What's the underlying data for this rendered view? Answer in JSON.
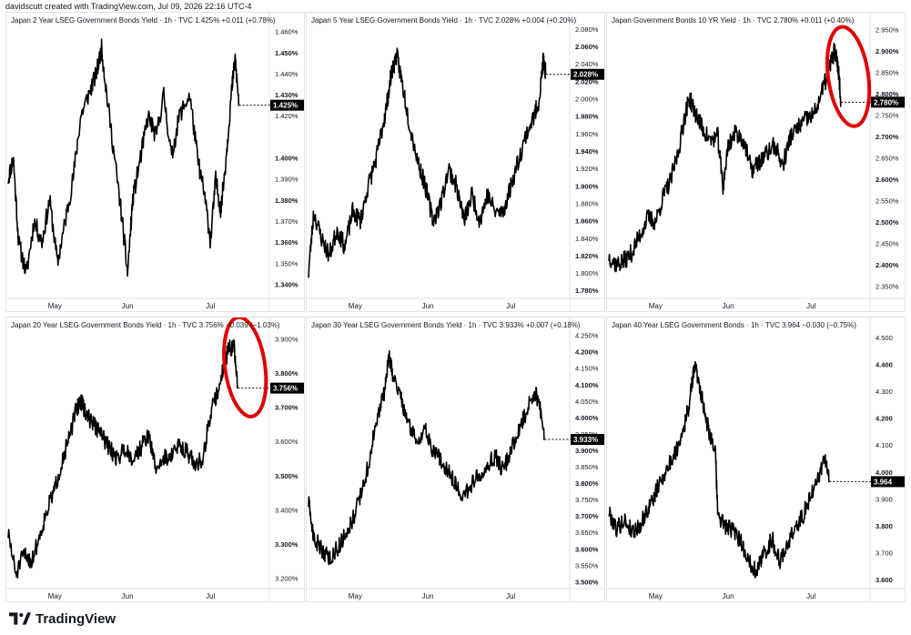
{
  "header": {
    "creator": "davidscutt created with TradingView.com, Jul 09, 2026 22:16 UTC-4"
  },
  "footer": {
    "brand": "TradingView"
  },
  "colors": {
    "line": "#000000",
    "circle": "#e00000",
    "price_label_bg": "#000000",
    "axis_text": "#131722"
  },
  "chart_data": [
    {
      "type": "line",
      "title": "Japan 2 Year LSEG Government Bonds Yield · 1h · TVC  1.425% +0.011 (+0.78%)",
      "x_ticks": [
        "May",
        "Jun",
        "Jul"
      ],
      "y_ticks": [
        "1.460%",
        "1.450%",
        "1.440%",
        "1.430%",
        "1.420%",
        "1.400%",
        "1.390%",
        "1.380%",
        "1.370%",
        "1.360%",
        "1.350%",
        "1.340%"
      ],
      "ylim": [
        1.335,
        1.462
      ],
      "last_value": 1.425,
      "last_label": "1.425%",
      "circled": false,
      "anchors": [
        [
          0,
          1.39
        ],
        [
          0.02,
          1.4
        ],
        [
          0.04,
          1.36
        ],
        [
          0.07,
          1.345
        ],
        [
          0.1,
          1.37
        ],
        [
          0.13,
          1.36
        ],
        [
          0.16,
          1.38
        ],
        [
          0.19,
          1.35
        ],
        [
          0.22,
          1.37
        ],
        [
          0.25,
          1.39
        ],
        [
          0.28,
          1.42
        ],
        [
          0.31,
          1.43
        ],
        [
          0.34,
          1.44
        ],
        [
          0.36,
          1.452
        ],
        [
          0.38,
          1.43
        ],
        [
          0.41,
          1.4
        ],
        [
          0.44,
          1.37
        ],
        [
          0.46,
          1.345
        ],
        [
          0.48,
          1.38
        ],
        [
          0.51,
          1.4
        ],
        [
          0.54,
          1.42
        ],
        [
          0.57,
          1.41
        ],
        [
          0.6,
          1.43
        ],
        [
          0.63,
          1.4
        ],
        [
          0.66,
          1.42
        ],
        [
          0.7,
          1.43
        ],
        [
          0.73,
          1.4
        ],
        [
          0.76,
          1.38
        ],
        [
          0.78,
          1.36
        ],
        [
          0.8,
          1.39
        ],
        [
          0.82,
          1.375
        ],
        [
          0.84,
          1.4
        ],
        [
          0.86,
          1.43
        ],
        [
          0.875,
          1.447
        ],
        [
          0.89,
          1.425
        ]
      ],
      "seed": 11
    },
    {
      "type": "line",
      "title": "Japan 5 Year LSEG Government Bonds Yield · 1h · TVC  2.028% +0.004 (+0.20%)",
      "x_ticks": [
        "May",
        "Jun",
        "Jul"
      ],
      "y_ticks": [
        "2.080%",
        "2.060%",
        "2.040%",
        "2.020%",
        "2.000%",
        "1.980%",
        "1.960%",
        "1.940%",
        "1.920%",
        "1.900%",
        "1.880%",
        "1.860%",
        "1.840%",
        "1.820%",
        "1.800%",
        "1.780%"
      ],
      "ylim": [
        1.775,
        2.082
      ],
      "last_value": 2.028,
      "last_label": "2.028%",
      "circled": false,
      "anchors": [
        [
          0,
          1.8
        ],
        [
          0.02,
          1.87
        ],
        [
          0.05,
          1.84
        ],
        [
          0.08,
          1.82
        ],
        [
          0.11,
          1.85
        ],
        [
          0.14,
          1.83
        ],
        [
          0.17,
          1.87
        ],
        [
          0.2,
          1.86
        ],
        [
          0.23,
          1.9
        ],
        [
          0.26,
          1.93
        ],
        [
          0.28,
          1.96
        ],
        [
          0.3,
          1.99
        ],
        [
          0.32,
          2.03
        ],
        [
          0.34,
          2.05
        ],
        [
          0.36,
          2.02
        ],
        [
          0.39,
          1.97
        ],
        [
          0.42,
          1.93
        ],
        [
          0.45,
          1.9
        ],
        [
          0.48,
          1.86
        ],
        [
          0.51,
          1.88
        ],
        [
          0.54,
          1.92
        ],
        [
          0.57,
          1.9
        ],
        [
          0.6,
          1.86
        ],
        [
          0.63,
          1.89
        ],
        [
          0.66,
          1.86
        ],
        [
          0.69,
          1.89
        ],
        [
          0.72,
          1.87
        ],
        [
          0.75,
          1.87
        ],
        [
          0.78,
          1.9
        ],
        [
          0.81,
          1.93
        ],
        [
          0.84,
          1.96
        ],
        [
          0.87,
          1.98
        ],
        [
          0.89,
          2.0
        ],
        [
          0.905,
          2.045
        ],
        [
          0.915,
          2.028
        ]
      ],
      "seed": 23
    },
    {
      "type": "line",
      "title": "Japan Government Bonds 10 YR Yield · 1h · TVC  2.780% +0.011 (+0.40%)",
      "x_ticks": [
        "May",
        "Jun",
        "Jul"
      ],
      "y_ticks": [
        "2.950%",
        "2.900%",
        "2.850%",
        "2.800%",
        "2.750%",
        "2.700%",
        "2.650%",
        "2.600%",
        "2.550%",
        "2.500%",
        "2.450%",
        "2.400%",
        "2.350%"
      ],
      "ylim": [
        2.33,
        2.955
      ],
      "last_value": 2.78,
      "last_label": "2.780%",
      "circled": true,
      "anchors": [
        [
          0,
          2.42
        ],
        [
          0.03,
          2.4
        ],
        [
          0.06,
          2.41
        ],
        [
          0.09,
          2.43
        ],
        [
          0.12,
          2.47
        ],
        [
          0.15,
          2.51
        ],
        [
          0.18,
          2.5
        ],
        [
          0.21,
          2.56
        ],
        [
          0.24,
          2.6
        ],
        [
          0.27,
          2.67
        ],
        [
          0.29,
          2.74
        ],
        [
          0.31,
          2.79
        ],
        [
          0.33,
          2.76
        ],
        [
          0.36,
          2.72
        ],
        [
          0.39,
          2.69
        ],
        [
          0.42,
          2.7
        ],
        [
          0.44,
          2.58
        ],
        [
          0.46,
          2.68
        ],
        [
          0.49,
          2.71
        ],
        [
          0.52,
          2.69
        ],
        [
          0.55,
          2.62
        ],
        [
          0.58,
          2.64
        ],
        [
          0.61,
          2.66
        ],
        [
          0.64,
          2.68
        ],
        [
          0.67,
          2.63
        ],
        [
          0.7,
          2.7
        ],
        [
          0.73,
          2.72
        ],
        [
          0.76,
          2.74
        ],
        [
          0.79,
          2.75
        ],
        [
          0.82,
          2.8
        ],
        [
          0.85,
          2.86
        ],
        [
          0.87,
          2.9
        ],
        [
          0.885,
          2.86
        ],
        [
          0.895,
          2.78
        ]
      ],
      "seed": 37
    },
    {
      "type": "line",
      "title": "Japan 20 Year LSEG Government Bonds Yield · 1h · TVC  3.756% −0.039 (−1.03%)",
      "x_ticks": [
        "May",
        "Jun",
        "Jul"
      ],
      "y_ticks": [
        "3.900%",
        "3.800%",
        "3.756%",
        "3.700%",
        "3.600%",
        "3.500%",
        "3.400%",
        "3.300%",
        "3.200%"
      ],
      "ylim": [
        3.18,
        3.92
      ],
      "last_value": 3.756,
      "last_label": "3.756%",
      "circled": true,
      "anchors": [
        [
          0,
          3.33
        ],
        [
          0.03,
          3.21
        ],
        [
          0.06,
          3.27
        ],
        [
          0.09,
          3.25
        ],
        [
          0.12,
          3.32
        ],
        [
          0.15,
          3.4
        ],
        [
          0.18,
          3.46
        ],
        [
          0.21,
          3.55
        ],
        [
          0.24,
          3.62
        ],
        [
          0.26,
          3.69
        ],
        [
          0.28,
          3.72
        ],
        [
          0.3,
          3.68
        ],
        [
          0.33,
          3.65
        ],
        [
          0.36,
          3.62
        ],
        [
          0.39,
          3.58
        ],
        [
          0.42,
          3.55
        ],
        [
          0.45,
          3.58
        ],
        [
          0.48,
          3.55
        ],
        [
          0.51,
          3.58
        ],
        [
          0.54,
          3.62
        ],
        [
          0.57,
          3.52
        ],
        [
          0.6,
          3.55
        ],
        [
          0.63,
          3.56
        ],
        [
          0.66,
          3.59
        ],
        [
          0.69,
          3.57
        ],
        [
          0.72,
          3.53
        ],
        [
          0.75,
          3.55
        ],
        [
          0.78,
          3.68
        ],
        [
          0.81,
          3.75
        ],
        [
          0.83,
          3.82
        ],
        [
          0.85,
          3.87
        ],
        [
          0.87,
          3.88
        ],
        [
          0.885,
          3.756
        ]
      ],
      "seed": 51
    },
    {
      "type": "line",
      "title": "Japan 30 Year LSEG Government Bonds Yield · 1h · TVC  3.933% +0.007 (+0.18%)",
      "x_ticks": [
        "May",
        "Jun",
        "Jul"
      ],
      "y_ticks": [
        "4.250%",
        "4.200%",
        "4.150%",
        "4.100%",
        "4.050%",
        "4.000%",
        "3.950%",
        "3.900%",
        "3.850%",
        "3.800%",
        "3.750%",
        "3.700%",
        "3.650%",
        "3.600%",
        "3.550%",
        "3.500%"
      ],
      "ylim": [
        3.49,
        4.26
      ],
      "last_value": 3.933,
      "last_label": "3.933%",
      "circled": false,
      "anchors": [
        [
          0,
          3.74
        ],
        [
          0.02,
          3.63
        ],
        [
          0.05,
          3.6
        ],
        [
          0.08,
          3.57
        ],
        [
          0.11,
          3.6
        ],
        [
          0.14,
          3.64
        ],
        [
          0.17,
          3.69
        ],
        [
          0.2,
          3.76
        ],
        [
          0.23,
          3.85
        ],
        [
          0.26,
          3.98
        ],
        [
          0.29,
          4.07
        ],
        [
          0.31,
          4.18
        ],
        [
          0.33,
          4.12
        ],
        [
          0.36,
          4.05
        ],
        [
          0.39,
          3.97
        ],
        [
          0.42,
          3.93
        ],
        [
          0.45,
          3.96
        ],
        [
          0.48,
          3.9
        ],
        [
          0.51,
          3.87
        ],
        [
          0.54,
          3.84
        ],
        [
          0.57,
          3.79
        ],
        [
          0.6,
          3.76
        ],
        [
          0.63,
          3.8
        ],
        [
          0.66,
          3.83
        ],
        [
          0.69,
          3.86
        ],
        [
          0.72,
          3.88
        ],
        [
          0.75,
          3.84
        ],
        [
          0.78,
          3.9
        ],
        [
          0.81,
          3.96
        ],
        [
          0.84,
          4.02
        ],
        [
          0.87,
          4.08
        ],
        [
          0.89,
          4.04
        ],
        [
          0.91,
          3.933
        ]
      ],
      "seed": 63
    },
    {
      "type": "line",
      "title": "Japan 40 Year LSEG Government Bonds · 1h · TVC  3.964 −0.030 (−0.75%)",
      "x_ticks": [
        "May",
        "Jun",
        "Jul"
      ],
      "y_ticks": [
        "4.500",
        "4.400",
        "4.300",
        "4.200",
        "4.100",
        "4.000",
        "3.900",
        "3.800",
        "3.700",
        "3.600"
      ],
      "ylim": [
        3.58,
        4.52
      ],
      "last_value": 3.964,
      "last_label": "3.964",
      "circled": false,
      "anchors": [
        [
          0,
          3.85
        ],
        [
          0.03,
          3.79
        ],
        [
          0.06,
          3.82
        ],
        [
          0.09,
          3.78
        ],
        [
          0.12,
          3.8
        ],
        [
          0.15,
          3.86
        ],
        [
          0.18,
          3.92
        ],
        [
          0.2,
          3.97
        ],
        [
          0.23,
          4.02
        ],
        [
          0.26,
          4.08
        ],
        [
          0.29,
          4.17
        ],
        [
          0.31,
          4.25
        ],
        [
          0.33,
          4.4
        ],
        [
          0.35,
          4.32
        ],
        [
          0.37,
          4.22
        ],
        [
          0.39,
          4.14
        ],
        [
          0.41,
          4.08
        ],
        [
          0.42,
          3.84
        ],
        [
          0.45,
          3.8
        ],
        [
          0.48,
          3.78
        ],
        [
          0.51,
          3.74
        ],
        [
          0.54,
          3.67
        ],
        [
          0.57,
          3.63
        ],
        [
          0.6,
          3.7
        ],
        [
          0.63,
          3.75
        ],
        [
          0.66,
          3.66
        ],
        [
          0.69,
          3.74
        ],
        [
          0.72,
          3.79
        ],
        [
          0.75,
          3.84
        ],
        [
          0.78,
          3.92
        ],
        [
          0.81,
          3.98
        ],
        [
          0.83,
          4.06
        ],
        [
          0.85,
          3.964
        ]
      ],
      "seed": 79
    }
  ]
}
